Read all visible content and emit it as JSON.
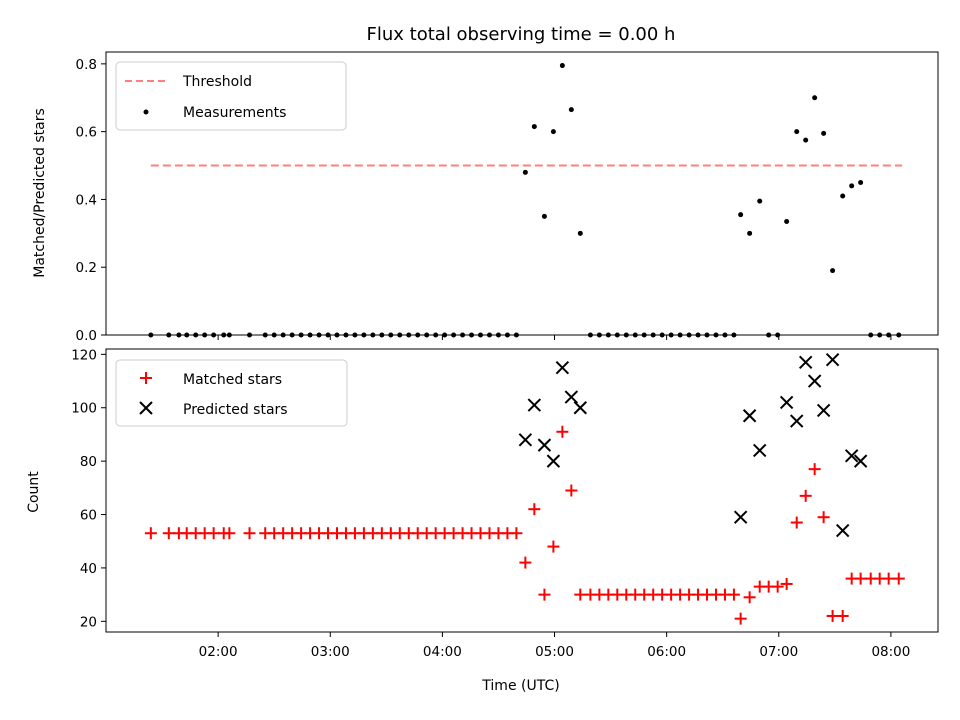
{
  "chart_data": [
    {
      "type": "scatter",
      "title": "Flux total observing time = 0.00 h",
      "xlabel": "",
      "ylabel": "Matched/Predicted stars",
      "ylim": [
        0,
        0.835
      ],
      "yticks": [
        0.0,
        0.2,
        0.4,
        0.6,
        0.8
      ],
      "ytick_labels": [
        "0.0",
        "0.2",
        "0.4",
        "0.6",
        "0.8"
      ],
      "xlim_hours": [
        1.0,
        8.42
      ],
      "legend_location": "top-left",
      "threshold": {
        "name": "Threshold",
        "value": 0.5,
        "x_start_hours": 1.4,
        "x_end_hours": 8.1,
        "color": "#ff7f7f"
      },
      "series": [
        {
          "name": "Measurements",
          "color": "#000000",
          "marker": "dot",
          "x_hours": [
            1.4,
            1.56,
            1.65,
            1.72,
            1.8,
            1.88,
            1.96,
            2.05,
            2.1,
            2.28,
            2.42,
            2.5,
            2.58,
            2.66,
            2.74,
            2.82,
            2.9,
            2.98,
            3.06,
            3.14,
            3.22,
            3.3,
            3.38,
            3.46,
            3.54,
            3.62,
            3.7,
            3.78,
            3.86,
            3.94,
            4.02,
            4.1,
            4.18,
            4.26,
            4.34,
            4.42,
            4.5,
            4.58,
            4.66,
            4.74,
            4.82,
            4.91,
            4.99,
            5.07,
            5.15,
            5.23,
            5.32,
            5.4,
            5.48,
            5.56,
            5.64,
            5.72,
            5.8,
            5.88,
            5.96,
            6.04,
            6.12,
            6.2,
            6.28,
            6.36,
            6.44,
            6.52,
            6.6,
            6.66,
            6.74,
            6.83,
            6.91,
            6.99,
            7.07,
            7.16,
            7.24,
            7.32,
            7.4,
            7.48,
            7.57,
            7.65,
            7.73,
            7.82,
            7.9,
            7.98,
            8.07
          ],
          "y": [
            0,
            0,
            0,
            0,
            0,
            0,
            0,
            0,
            0,
            0,
            0,
            0,
            0,
            0,
            0,
            0,
            0,
            0,
            0,
            0,
            0,
            0,
            0,
            0,
            0,
            0,
            0,
            0,
            0,
            0,
            0,
            0,
            0,
            0,
            0,
            0,
            0,
            0,
            0,
            0.48,
            0.615,
            0.35,
            0.6,
            0.795,
            0.665,
            0.3,
            0,
            0,
            0,
            0,
            0,
            0,
            0,
            0,
            0,
            0,
            0,
            0,
            0,
            0,
            0,
            0,
            0,
            0.355,
            0.3,
            0.395,
            0,
            0,
            0.335,
            0.6,
            0.575,
            0.7,
            0.595,
            0.19,
            0.41,
            0.44,
            0.45,
            0,
            0,
            0,
            0
          ]
        }
      ]
    },
    {
      "type": "scatter",
      "title": "",
      "xlabel": "Time (UTC)",
      "ylabel": "Count",
      "ylim": [
        16,
        122
      ],
      "yticks": [
        20,
        40,
        60,
        80,
        100,
        120
      ],
      "ytick_labels": [
        "20",
        "40",
        "60",
        "80",
        "100",
        "120"
      ],
      "xlim_hours": [
        1.0,
        8.42
      ],
      "xticks_hours": [
        2,
        3,
        4,
        5,
        6,
        7,
        8
      ],
      "xtick_labels": [
        "02:00",
        "03:00",
        "04:00",
        "05:00",
        "06:00",
        "07:00",
        "08:00"
      ],
      "legend_location": "top-left",
      "series": [
        {
          "name": "Matched stars",
          "color": "#ff0000",
          "marker": "plus",
          "x_hours": [
            1.4,
            1.56,
            1.65,
            1.72,
            1.8,
            1.88,
            1.96,
            2.05,
            2.1,
            2.28,
            2.42,
            2.5,
            2.58,
            2.66,
            2.74,
            2.82,
            2.9,
            2.98,
            3.06,
            3.14,
            3.22,
            3.3,
            3.38,
            3.46,
            3.54,
            3.62,
            3.7,
            3.78,
            3.86,
            3.94,
            4.02,
            4.1,
            4.18,
            4.26,
            4.34,
            4.42,
            4.5,
            4.58,
            4.66,
            4.74,
            4.82,
            4.91,
            4.99,
            5.07,
            5.15,
            5.23,
            5.32,
            5.4,
            5.48,
            5.56,
            5.64,
            5.72,
            5.8,
            5.88,
            5.96,
            6.04,
            6.12,
            6.2,
            6.28,
            6.36,
            6.44,
            6.52,
            6.6,
            6.66,
            6.74,
            6.83,
            6.91,
            6.99,
            7.07,
            7.16,
            7.24,
            7.32,
            7.4,
            7.48,
            7.57,
            7.65,
            7.73,
            7.82,
            7.9,
            7.98,
            8.07
          ],
          "y": [
            53,
            53,
            53,
            53,
            53,
            53,
            53,
            53,
            53,
            53,
            53,
            53,
            53,
            53,
            53,
            53,
            53,
            53,
            53,
            53,
            53,
            53,
            53,
            53,
            53,
            53,
            53,
            53,
            53,
            53,
            53,
            53,
            53,
            53,
            53,
            53,
            53,
            53,
            53,
            42,
            62,
            30,
            48,
            91,
            69,
            30,
            30,
            30,
            30,
            30,
            30,
            30,
            30,
            30,
            30,
            30,
            30,
            30,
            30,
            30,
            30,
            30,
            30,
            21,
            29,
            33,
            33,
            33,
            34,
            57,
            67,
            77,
            59,
            22,
            22,
            36,
            36,
            36,
            36,
            36,
            36
          ]
        },
        {
          "name": "Predicted stars",
          "color": "#000000",
          "marker": "x",
          "x_hours": [
            4.74,
            4.82,
            4.91,
            4.99,
            5.07,
            5.15,
            5.23,
            6.66,
            6.74,
            6.83,
            7.07,
            7.16,
            7.24,
            7.32,
            7.4,
            7.48,
            7.57,
            7.65,
            7.73
          ],
          "y": [
            88,
            101,
            86,
            80,
            115,
            104,
            100,
            59,
            97,
            84,
            102,
            95,
            117,
            110,
            99,
            118,
            54,
            82,
            80
          ]
        }
      ]
    }
  ]
}
